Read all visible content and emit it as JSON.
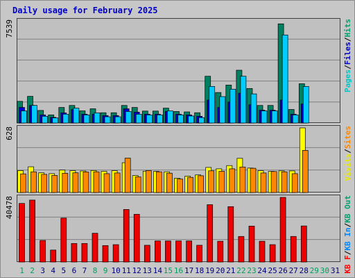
{
  "chart_data": {
    "title": "Daily usage for February 2025",
    "days": [
      "1",
      "2",
      "3",
      "4",
      "5",
      "6",
      "7",
      "8",
      "9",
      "10",
      "11",
      "12",
      "13",
      "14",
      "15",
      "16",
      "17",
      "18",
      "19",
      "20",
      "21",
      "22",
      "23",
      "24",
      "25",
      "26",
      "27",
      "28",
      "29",
      "30",
      "31"
    ],
    "weekend_days": [
      "1",
      "2",
      "8",
      "9",
      "15",
      "16",
      "22",
      "23",
      "29",
      "30"
    ],
    "panels": [
      {
        "type": "bar",
        "max_label": "7539",
        "ylim": [
          0,
          7539
        ],
        "legend": [
          {
            "text": "Pages",
            "color": "#00c8c8"
          },
          {
            "text": "/",
            "color": "#000000"
          },
          {
            "text": "Files",
            "color": "#0000cc"
          },
          {
            "text": "/",
            "color": "#000000"
          },
          {
            "text": "Hits",
            "color": "#00a070"
          }
        ],
        "series": [
          {
            "name": "Hits",
            "color": "#008060",
            "values": [
              1600,
              1970,
              930,
              600,
              1150,
              1300,
              900,
              1050,
              760,
              760,
              1300,
              1150,
              880,
              880,
              1100,
              850,
              820,
              760,
              3450,
              2250,
              2800,
              3900,
              2550,
              1300,
              1300,
              7320,
              1000,
              2900,
              null,
              null,
              null
            ]
          },
          {
            "name": "Files",
            "color": "#0000cc",
            "values": [
              1150,
              1300,
              600,
              420,
              750,
              1000,
              650,
              650,
              550,
              550,
              1050,
              800,
              650,
              650,
              850,
              650,
              600,
              500,
              1700,
              1150,
              1550,
              2200,
              1350,
              950,
              950,
              1700,
              650,
              1400,
              null,
              null,
              null
            ]
          },
          {
            "name": "Pages",
            "color": "#00ccff",
            "values": [
              900,
              1300,
              500,
              380,
              650,
              1100,
              600,
              750,
              460,
              460,
              850,
              650,
              600,
              600,
              900,
              600,
              520,
              400,
              2700,
              1950,
              2500,
              3450,
              2150,
              900,
              900,
              6500,
              600,
              2700,
              null,
              null,
              null
            ]
          }
        ]
      },
      {
        "type": "bar",
        "max_label": "628",
        "ylim": [
          0,
          628
        ],
        "legend": [
          {
            "text": "Visits",
            "color": "#e8e800"
          },
          {
            "text": "/",
            "color": "#000000"
          },
          {
            "text": "Sites",
            "color": "#ff8800"
          }
        ],
        "series": [
          {
            "name": "Visits",
            "color": "#ffff00",
            "values": [
              213,
              250,
              191,
              183,
              218,
              212,
              209,
              214,
              206,
              212,
              290,
              165,
              207,
              205,
              201,
              139,
              159,
              171,
              244,
              230,
              262,
              332,
              238,
              212,
              206,
              211,
              210,
              628,
              null,
              null,
              null
            ]
          },
          {
            "name": "Sites",
            "color": "#ff8800",
            "values": [
              181,
              201,
              176,
              166,
              187,
              192,
              200,
              201,
              183,
              190,
              334,
              152,
              213,
              201,
              188,
              131,
              147,
              163,
              211,
              206,
              230,
              248,
              236,
              190,
              204,
              201,
              183,
              409,
              null,
              null,
              null
            ]
          }
        ]
      },
      {
        "type": "bar",
        "max_label": "40478",
        "ylim": [
          0,
          40478
        ],
        "legend": [
          {
            "text": "KB F",
            "color": "#ff0000"
          },
          {
            "text": "/",
            "color": "#000000"
          },
          {
            "text": "KB In",
            "color": "#0088ff"
          },
          {
            "text": "/",
            "color": "#000000"
          },
          {
            "text": "KB Out",
            "color": "#00a070"
          }
        ],
        "series": [
          {
            "name": "KB F",
            "color": "#ee0000",
            "values": [
              36700,
              38800,
              13500,
              7500,
              27500,
              11600,
              11600,
              18000,
              10300,
              10900,
              32900,
              29900,
              10500,
              13200,
              13200,
              13200,
              13200,
              10500,
              35900,
              13000,
              34700,
              16000,
              22500,
              13000,
              10900,
              40478,
              16000,
              22600,
              null,
              null,
              null
            ]
          }
        ]
      }
    ]
  }
}
